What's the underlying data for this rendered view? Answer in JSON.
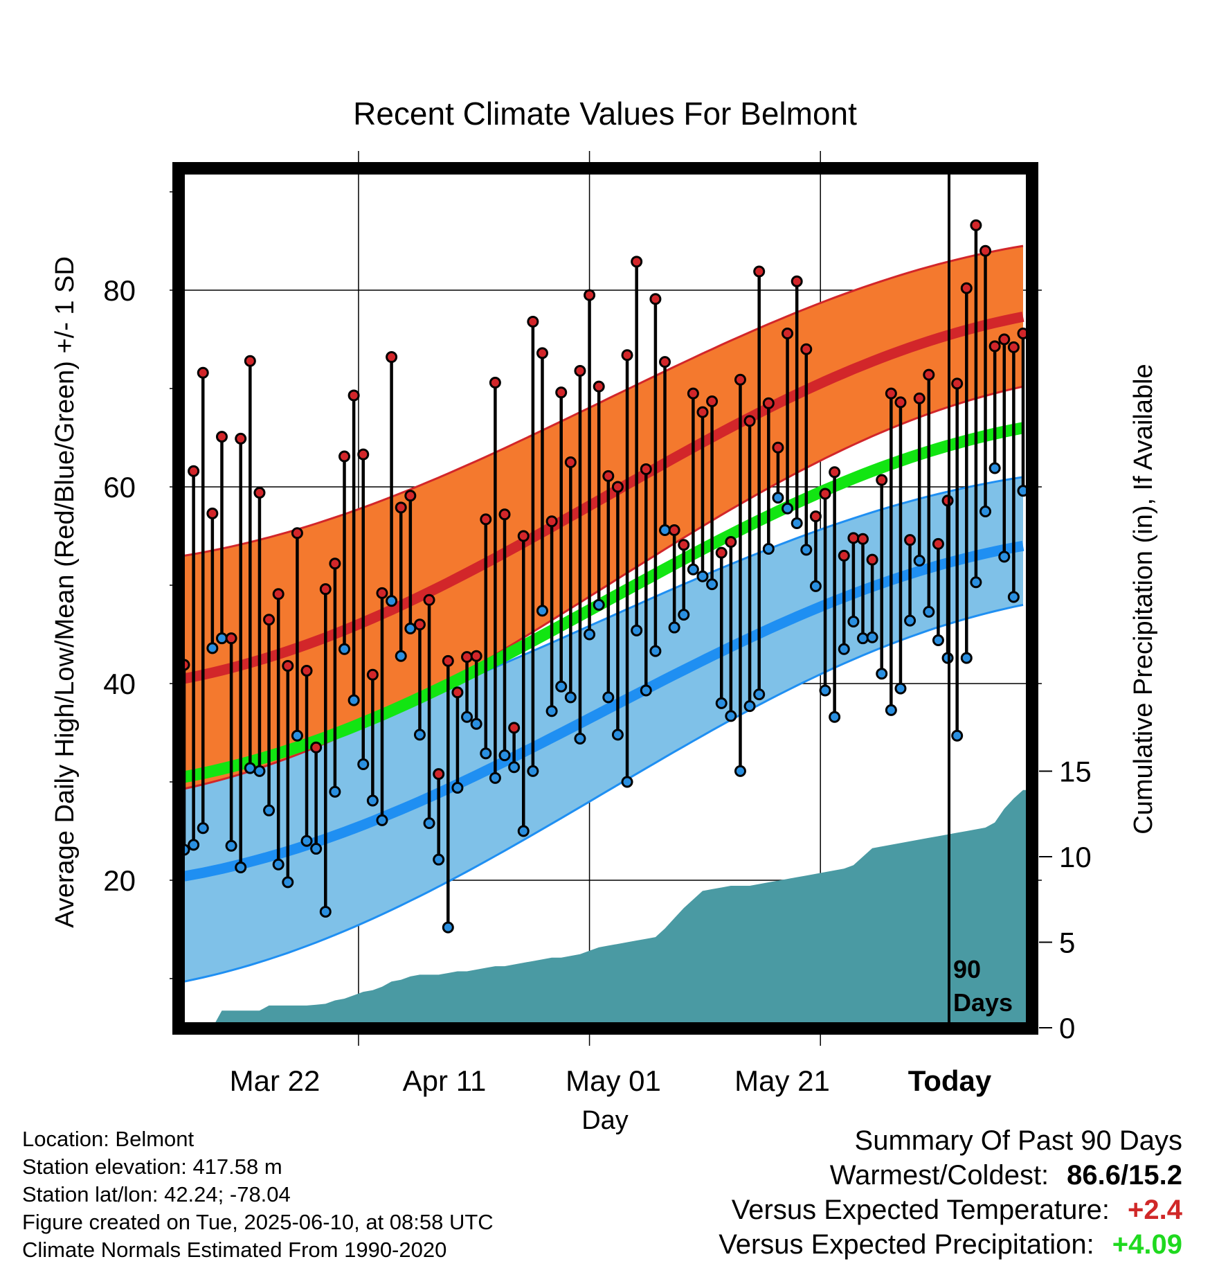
{
  "chart_data": {
    "type": "line",
    "title": "Recent Climate Values For Belmont",
    "xlabel": "Day",
    "ylabel": "Average Daily High/Low/Mean (Red/Blue/Green) +/- 1 SD",
    "y2label": "Cumulative Precipitation (in), If Available",
    "x_tick_labels": [
      "Mar 22",
      "Apr 11",
      "May 01",
      "May 21",
      "Today"
    ],
    "y_ticks": [
      20,
      40,
      60,
      80
    ],
    "y2_ticks": [
      0,
      5,
      10,
      15
    ],
    "today_marker_label": [
      "90",
      "Days"
    ],
    "ylim": [
      5,
      93
    ],
    "y2lim": [
      0,
      42
    ],
    "days": 90,
    "normal_high": {
      "start": 40.5,
      "end": 77.3,
      "sd_low": [
        29.3,
        70.2
      ],
      "sd_high": [
        53.0,
        84.5
      ]
    },
    "normal_low": {
      "start": 20.4,
      "end": 54.0,
      "sd_low": [
        9.7,
        48.0
      ],
      "sd_high": [
        32.0,
        61.0
      ]
    },
    "normal_mean": {
      "start": 30.5,
      "end": 66.0
    },
    "daily_high": [
      41.9,
      61.6,
      71.6,
      57.3,
      65.1,
      44.6,
      64.9,
      72.8,
      59.4,
      46.5,
      49.1,
      41.8,
      55.3,
      41.3,
      33.5,
      49.6,
      52.2,
      63.1,
      69.3,
      63.3,
      40.9,
      49.2,
      73.2,
      57.9,
      59.1,
      46.0,
      48.5,
      30.8,
      42.3,
      39.1,
      42.7,
      42.8,
      56.7,
      70.6,
      57.2,
      35.5,
      55.0,
      76.8,
      73.6,
      56.5,
      69.6,
      62.5,
      71.8,
      79.5,
      70.2,
      61.1,
      60.0,
      73.4,
      82.9,
      61.8,
      79.1,
      72.7,
      55.6,
      54.1,
      69.5,
      67.6,
      68.7,
      53.3,
      54.4,
      70.9,
      66.7,
      81.9,
      68.5,
      64.0,
      75.6,
      80.9,
      74.0,
      57.0,
      59.3,
      61.5,
      53.0,
      54.8,
      54.7,
      52.6,
      60.7,
      69.5,
      68.6,
      54.6,
      69.0,
      71.4,
      54.2,
      58.6,
      70.5,
      80.2,
      86.6,
      84.0,
      74.3,
      75.0,
      74.2,
      75.6
    ],
    "daily_low": [
      23.1,
      23.6,
      25.3,
      43.6,
      44.6,
      23.5,
      21.3,
      31.4,
      31.1,
      27.1,
      21.6,
      19.8,
      34.7,
      24.0,
      23.2,
      16.8,
      29.0,
      43.5,
      38.3,
      31.8,
      28.1,
      26.1,
      48.4,
      42.8,
      45.6,
      34.8,
      25.8,
      22.1,
      15.2,
      29.4,
      36.6,
      35.9,
      32.9,
      30.4,
      32.7,
      31.5,
      25.0,
      31.1,
      47.4,
      37.2,
      39.7,
      38.6,
      34.4,
      45.0,
      48.0,
      38.6,
      34.8,
      30.0,
      45.4,
      39.3,
      43.3,
      55.6,
      45.7,
      47.0,
      51.6,
      50.9,
      50.1,
      38.0,
      36.7,
      31.1,
      37.7,
      38.9,
      53.7,
      58.9,
      57.8,
      56.3,
      53.6,
      49.9,
      39.3,
      36.6,
      43.5,
      46.3,
      44.6,
      44.7,
      41.0,
      37.3,
      39.5,
      46.4,
      52.5,
      47.3,
      44.4,
      42.6,
      34.7,
      42.6,
      50.3,
      57.5,
      61.9,
      52.9,
      48.8,
      59.6
    ],
    "precip_cumulative": [
      0,
      0,
      0,
      0,
      1.0,
      1.0,
      1.0,
      1.0,
      1.0,
      1.3,
      1.3,
      1.3,
      1.3,
      1.3,
      1.35,
      1.4,
      1.6,
      1.7,
      1.9,
      2.1,
      2.2,
      2.4,
      2.7,
      2.8,
      3.0,
      3.1,
      3.1,
      3.1,
      3.2,
      3.3,
      3.3,
      3.4,
      3.5,
      3.6,
      3.6,
      3.7,
      3.8,
      3.9,
      4.0,
      4.1,
      4.1,
      4.2,
      4.3,
      4.5,
      4.7,
      4.8,
      4.9,
      5.0,
      5.1,
      5.2,
      5.3,
      5.8,
      6.4,
      7.0,
      7.5,
      8.0,
      8.1,
      8.2,
      8.3,
      8.3,
      8.3,
      8.4,
      8.5,
      8.6,
      8.7,
      8.8,
      8.9,
      9.0,
      9.1,
      9.2,
      9.3,
      9.5,
      10.0,
      10.5,
      10.6,
      10.7,
      10.8,
      10.9,
      11.0,
      11.1,
      11.2,
      11.3,
      11.4,
      11.5,
      11.6,
      11.7,
      12.0,
      12.8,
      13.4,
      13.9
    ]
  },
  "info": {
    "location": "Location: Belmont",
    "elevation": "Station elevation: 417.58 m",
    "latlon": "Station lat/lon: 42.24; -78.04",
    "created": "Figure created on Tue, 2025-06-10, at 08:58 UTC",
    "normals": "Climate Normals Estimated From 1990-2020"
  },
  "summary": {
    "heading": "Summary Of Past 90 Days",
    "warm_cold_label": "Warmest/Coldest:",
    "warm_cold_value": "86.6/15.2",
    "temp_label": "Versus Expected Temperature:",
    "temp_value": "+2.4",
    "precip_label": "Versus Expected Precipitation:",
    "precip_value": "+4.09"
  },
  "colors": {
    "high_band": "#f4792e",
    "high_line": "#d2262a",
    "low_band": "#7fc1e8",
    "low_line": "#1f8ff2",
    "mean_line": "#12e512",
    "precip_fill": "#4a9aa3",
    "dot_high": "#d2262a",
    "dot_low": "#2a8fe0"
  }
}
